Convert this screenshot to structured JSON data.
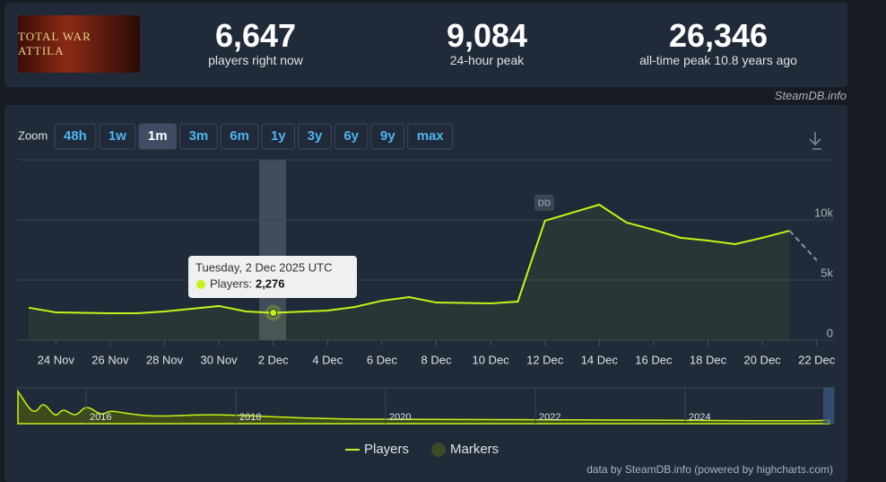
{
  "header": {
    "game": "TOTAL WAR ATTILA",
    "stats": [
      {
        "value": "6,647",
        "label": "players right now"
      },
      {
        "value": "9,084",
        "label": "24-hour peak"
      },
      {
        "value": "26,346",
        "label": "all-time peak 10.8 years ago"
      }
    ],
    "source": "SteamDB.info"
  },
  "zoom": {
    "label": "Zoom",
    "buttons": [
      "48h",
      "1w",
      "1m",
      "3m",
      "6m",
      "1y",
      "3y",
      "6y",
      "9y",
      "max"
    ],
    "active": 2
  },
  "chart_data": {
    "type": "line",
    "categories": [
      null,
      "24 Nov",
      null,
      "26 Nov",
      null,
      "28 Nov",
      null,
      "30 Nov",
      null,
      "2 Dec",
      null,
      "4 Dec",
      null,
      "6 Dec",
      null,
      "8 Dec",
      null,
      "10 Dec",
      null,
      "12 Dec",
      null,
      "14 Dec",
      null,
      "16 Dec",
      null,
      "18 Dec",
      null,
      "20 Dec",
      null,
      "22 Dec"
    ],
    "series": [
      {
        "name": "Players",
        "color": "#c7f31a",
        "values": [
          2700,
          2310,
          2280,
          2240,
          2240,
          2390,
          2610,
          2840,
          2390,
          2276,
          2370,
          2460,
          2760,
          3280,
          3580,
          3130,
          3100,
          3060,
          3210,
          9930,
          10600,
          11270,
          9780,
          9180,
          8510,
          8280,
          7990,
          8510,
          9100,
          6647
        ]
      }
    ],
    "markers_legend": "Markers",
    "marker_label": "DD",
    "ylim": [
      0,
      15000
    ],
    "yticks": [
      {
        "value": 0,
        "label": "0"
      },
      {
        "value": 5000,
        "label": "5k"
      },
      {
        "value": 10000,
        "label": "10k"
      }
    ],
    "grid": true,
    "tooltip": {
      "title": "Tuesday, 2 Dec 2025 UTC",
      "label": "Players:",
      "value": "2,276"
    },
    "navigator_years": [
      "2016",
      "2018",
      "2020",
      "2022",
      "2024"
    ],
    "credits": "data by SteamDB.info (powered by highcharts.com)"
  }
}
